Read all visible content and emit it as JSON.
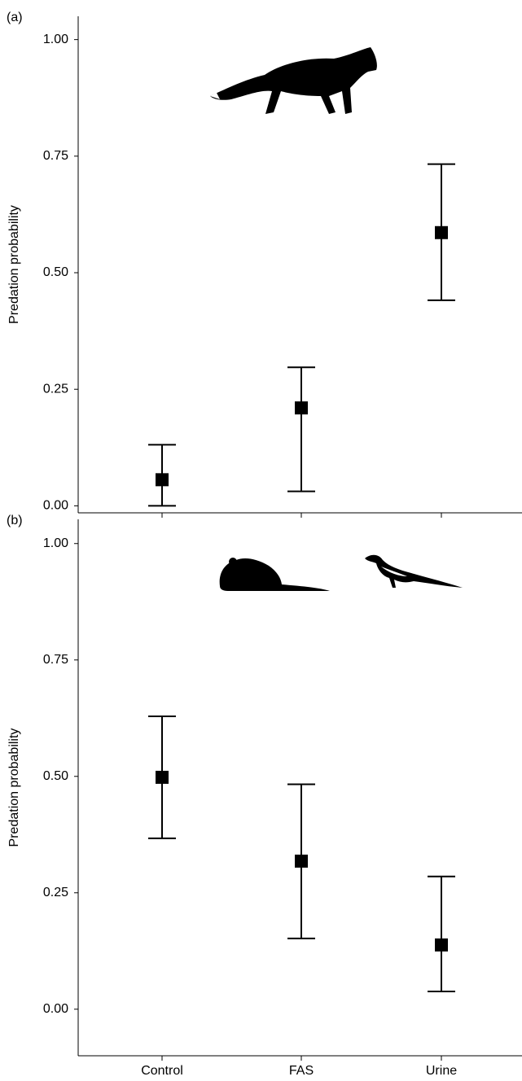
{
  "chart_data": [
    {
      "type": "errorbar",
      "panel_label": "(a)",
      "y_label": "Predation probability",
      "categories": [
        null,
        null,
        null
      ],
      "values": [
        0.056,
        0.21,
        0.586
      ],
      "lower": [
        0.0,
        0.031,
        0.441
      ],
      "upper": [
        0.131,
        0.297,
        0.733
      ],
      "color": "#000000",
      "ylim": [
        -0.015,
        1.05
      ],
      "yticks": [
        {
          "value": 0,
          "label": "0.00"
        },
        {
          "value": 0.25,
          "label": "0.25"
        },
        {
          "value": 0.5,
          "label": "0.50"
        },
        {
          "value": 0.75,
          "label": "0.75"
        },
        {
          "value": 1,
          "label": "1.00"
        }
      ]
    },
    {
      "type": "errorbar",
      "panel_label": "(b)",
      "y_label": "Predation probability",
      "categories": [
        "Control",
        "FAS",
        "Urine"
      ],
      "values": [
        0.498,
        0.318,
        0.138
      ],
      "lower": [
        0.367,
        0.152,
        0.038
      ],
      "upper": [
        0.629,
        0.483,
        0.285
      ],
      "color": "#000000",
      "ylim": [
        -0.1,
        1.052
      ],
      "yticks": [
        {
          "value": 0,
          "label": "0.00"
        },
        {
          "value": 0.25,
          "label": "0.25"
        },
        {
          "value": 0.5,
          "label": "0.50"
        },
        {
          "value": 0.75,
          "label": "0.75"
        },
        {
          "value": 1,
          "label": "1.00"
        }
      ]
    }
  ]
}
